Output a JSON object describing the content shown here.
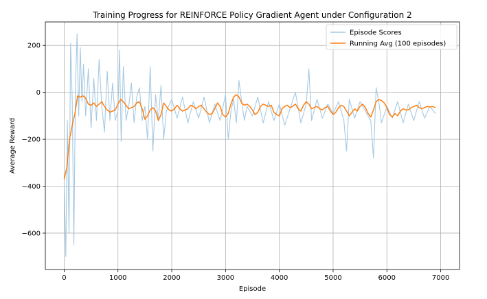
{
  "chart_data": {
    "type": "line",
    "title": "Training Progress for REINFORCE Policy Gradient Agent under Configuration 2",
    "xlabel": "Episode",
    "ylabel": "Average Reward",
    "xlim": [
      -350,
      7350
    ],
    "ylim": [
      -755,
      300
    ],
    "xticks": [
      0,
      1000,
      2000,
      3000,
      4000,
      5000,
      6000,
      7000
    ],
    "yticks": [
      -600,
      -400,
      -200,
      0,
      200
    ],
    "ytick_labels": [
      "−600",
      "−400",
      "−200",
      "0",
      "200"
    ],
    "grid": true,
    "legend_position": "top-right",
    "series": [
      {
        "name": "Episode Scores",
        "color": "#a6c9e2",
        "x": [
          0,
          30,
          60,
          90,
          120,
          150,
          180,
          210,
          240,
          270,
          300,
          330,
          360,
          400,
          450,
          500,
          550,
          600,
          650,
          700,
          750,
          800,
          850,
          900,
          950,
          1000,
          1030,
          1060,
          1100,
          1150,
          1200,
          1250,
          1300,
          1350,
          1400,
          1450,
          1500,
          1550,
          1600,
          1650,
          1700,
          1750,
          1800,
          1850,
          1900,
          2000,
          2100,
          2200,
          2300,
          2400,
          2500,
          2600,
          2700,
          2800,
          2900,
          3000,
          3050,
          3100,
          3150,
          3200,
          3250,
          3300,
          3350,
          3400,
          3500,
          3600,
          3700,
          3800,
          3900,
          4000,
          4100,
          4200,
          4300,
          4400,
          4500,
          4550,
          4600,
          4700,
          4800,
          4900,
          5000,
          5100,
          5200,
          5250,
          5300,
          5400,
          5500,
          5600,
          5700,
          5750,
          5800,
          5850,
          5900,
          6000,
          6100,
          6200,
          6300,
          6400,
          6500,
          6600,
          6700,
          6800,
          6900
        ],
        "values": [
          -380,
          -700,
          -120,
          -600,
          210,
          -40,
          -650,
          30,
          250,
          -100,
          190,
          -40,
          120,
          -100,
          100,
          -150,
          60,
          -120,
          140,
          -60,
          -170,
          90,
          -120,
          40,
          -120,
          -80,
          180,
          -210,
          110,
          -120,
          -60,
          40,
          -130,
          -20,
          20,
          -120,
          -60,
          -200,
          110,
          -250,
          -10,
          -120,
          30,
          -200,
          -80,
          -30,
          -110,
          -20,
          -130,
          -40,
          -110,
          -20,
          -130,
          -50,
          -120,
          -10,
          -200,
          -80,
          -30,
          -130,
          50,
          -40,
          -120,
          -60,
          -100,
          -20,
          -130,
          -40,
          -120,
          -50,
          -140,
          -70,
          0,
          -130,
          -50,
          100,
          -120,
          -30,
          -110,
          -50,
          -90,
          -40,
          -120,
          -250,
          -30,
          -110,
          -40,
          -80,
          -120,
          -280,
          20,
          -40,
          -130,
          -60,
          -110,
          -40,
          -130,
          -50,
          -120,
          -40,
          -110,
          -60,
          -90
        ]
      },
      {
        "name": "Running Avg (100 episodes)",
        "color": "#ff7f0e",
        "x": [
          0,
          50,
          100,
          150,
          200,
          250,
          300,
          350,
          400,
          450,
          500,
          550,
          600,
          650,
          700,
          750,
          800,
          850,
          900,
          950,
          1000,
          1050,
          1100,
          1150,
          1200,
          1250,
          1300,
          1350,
          1400,
          1450,
          1500,
          1550,
          1600,
          1650,
          1700,
          1750,
          1800,
          1850,
          1900,
          1950,
          2000,
          2050,
          2100,
          2150,
          2200,
          2250,
          2300,
          2350,
          2400,
          2450,
          2500,
          2550,
          2600,
          2650,
          2700,
          2750,
          2800,
          2850,
          2900,
          2950,
          3000,
          3050,
          3100,
          3150,
          3200,
          3250,
          3300,
          3350,
          3400,
          3450,
          3500,
          3550,
          3600,
          3650,
          3700,
          3750,
          3800,
          3850,
          3900,
          3950,
          4000,
          4050,
          4100,
          4150,
          4200,
          4250,
          4300,
          4350,
          4400,
          4450,
          4500,
          4550,
          4600,
          4650,
          4700,
          4750,
          4800,
          4850,
          4900,
          4950,
          5000,
          5050,
          5100,
          5150,
          5200,
          5250,
          5300,
          5350,
          5400,
          5450,
          5500,
          5550,
          5600,
          5650,
          5700,
          5750,
          5800,
          5850,
          5900,
          5950,
          6000,
          6050,
          6100,
          6150,
          6200,
          6250,
          6300,
          6350,
          6400,
          6450,
          6500,
          6550,
          6600,
          6650,
          6700,
          6750,
          6800,
          6850,
          6900
        ],
        "values": [
          -370,
          -320,
          -200,
          -140,
          -90,
          -15,
          -20,
          -15,
          -25,
          -50,
          -55,
          -45,
          -60,
          -50,
          -40,
          -60,
          -75,
          -85,
          -80,
          -75,
          -50,
          -30,
          -40,
          -55,
          -70,
          -65,
          -60,
          -45,
          -40,
          -70,
          -115,
          -100,
          -75,
          -65,
          -80,
          -120,
          -95,
          -45,
          -60,
          -75,
          -80,
          -70,
          -55,
          -70,
          -80,
          -75,
          -70,
          -55,
          -60,
          -70,
          -60,
          -55,
          -70,
          -85,
          -95,
          -90,
          -70,
          -45,
          -60,
          -95,
          -105,
          -90,
          -50,
          -20,
          -10,
          -20,
          -45,
          -55,
          -50,
          -60,
          -75,
          -95,
          -85,
          -60,
          -50,
          -55,
          -60,
          -55,
          -85,
          -95,
          -100,
          -70,
          -60,
          -55,
          -65,
          -60,
          -50,
          -70,
          -80,
          -55,
          -40,
          -50,
          -70,
          -65,
          -60,
          -70,
          -75,
          -65,
          -60,
          -80,
          -95,
          -85,
          -65,
          -55,
          -60,
          -80,
          -100,
          -85,
          -70,
          -80,
          -60,
          -50,
          -65,
          -90,
          -105,
          -75,
          -40,
          -30,
          -35,
          -45,
          -65,
          -95,
          -105,
          -90,
          -100,
          -80,
          -70,
          -75,
          -75,
          -65,
          -60,
          -55,
          -65,
          -70,
          -65,
          -60,
          -62,
          -60,
          -65
        ]
      }
    ]
  }
}
